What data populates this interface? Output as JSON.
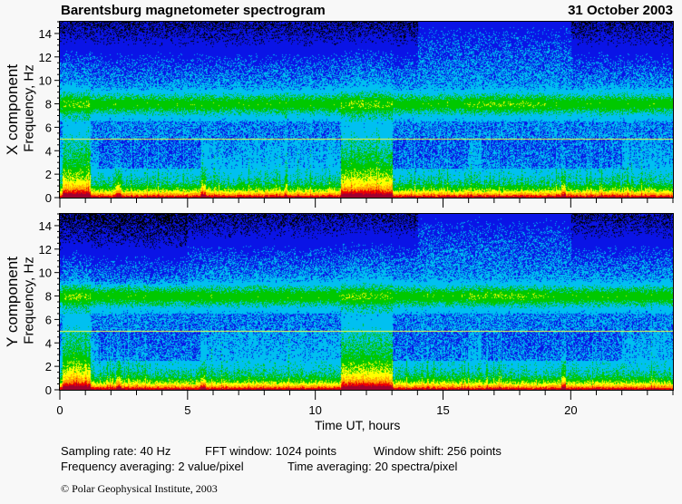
{
  "header": {
    "title": "Barentsburg magnetometer spectrogram",
    "date": "31 October 2003"
  },
  "chart_data": {
    "type": "heatmap",
    "panels": [
      {
        "name": "X component",
        "ylabel": "Frequency, Hz",
        "ylim": [
          0,
          15
        ],
        "marker_line_hz": 5,
        "yticks": [
          "0",
          "2",
          "4",
          "6",
          "8",
          "10",
          "12",
          "14"
        ]
      },
      {
        "name": "Y component",
        "ylabel": "Frequency, Hz",
        "ylim": [
          0,
          15
        ],
        "marker_line_hz": 5,
        "yticks": [
          "0",
          "2",
          "4",
          "6",
          "8",
          "10",
          "12",
          "14"
        ]
      }
    ],
    "xlabel": "Time UT, hours",
    "xlim": [
      0,
      24
    ],
    "xticks": [
      "0",
      "5",
      "10",
      "15",
      "20"
    ],
    "colorscale": [
      "#000000",
      "#0a14e6",
      "#00c0f0",
      "#00c800",
      "#ffff00",
      "#ffa000",
      "#f00000",
      "#a00030"
    ],
    "features": {
      "schumann_band_hz": 8,
      "broadband_activity_hours": [
        [
          11,
          13
        ],
        [
          0.1,
          1.2
        ],
        [
          2.2,
          2.4
        ],
        [
          5.5,
          5.7
        ],
        [
          19.6,
          19.8
        ]
      ],
      "quiet_high_freq_hours": [
        [
          14,
          20
        ]
      ]
    }
  },
  "footer": {
    "sampling": "Sampling rate: 40 Hz",
    "fft": "FFT window: 1024 points",
    "shift": "Window shift: 256 points",
    "freq_avg": "Frequency averaging: 2 value/pixel",
    "time_avg": "Time averaging: 20 spectra/pixel",
    "copyright": "© Polar Geophysical Institute, 2003"
  }
}
